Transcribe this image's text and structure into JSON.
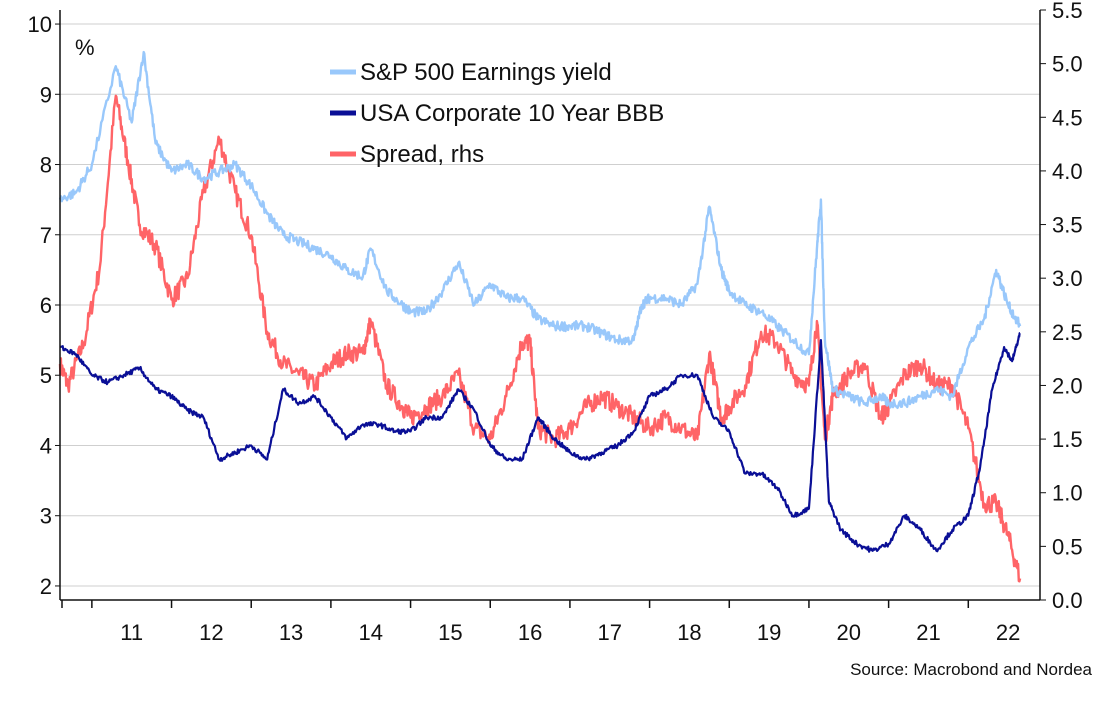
{
  "source": "Source: Macrobond and Nordea",
  "chart_data": {
    "type": "line",
    "left_unit_label": "%",
    "x_tick_labels": [
      "11",
      "12",
      "13",
      "14",
      "15",
      "16",
      "17",
      "18",
      "19",
      "20",
      "21",
      "22"
    ],
    "xlim": [
      2010.6,
      2022.9
    ],
    "ylim_left": [
      1.8,
      10.2
    ],
    "ylim_right": [
      0.0,
      5.5
    ],
    "y_ticks_left": [
      2,
      3,
      4,
      5,
      6,
      7,
      8,
      9,
      10
    ],
    "y_ticks_right": [
      "0.0",
      "0.5",
      "1.0",
      "1.5",
      "2.0",
      "2.5",
      "3.0",
      "3.5",
      "4.0",
      "4.5",
      "5.0",
      "5.5"
    ],
    "grid": true,
    "legend_position": "top-center",
    "series": [
      {
        "name": "S&P 500 Earnings yield",
        "axis": "left",
        "color": "#99c8fb",
        "x": [
          2010.6,
          2010.8,
          2011.0,
          2011.3,
          2011.5,
          2011.65,
          2011.8,
          2012.0,
          2012.2,
          2012.4,
          2012.6,
          2012.8,
          2013.0,
          2013.2,
          2013.4,
          2013.6,
          2013.8,
          2014.0,
          2014.2,
          2014.4,
          2014.5,
          2014.7,
          2014.9,
          2015.0,
          2015.2,
          2015.4,
          2015.6,
          2015.8,
          2016.0,
          2016.2,
          2016.4,
          2016.6,
          2016.8,
          2017.0,
          2017.2,
          2017.4,
          2017.6,
          2017.8,
          2017.9,
          2018.0,
          2018.2,
          2018.4,
          2018.6,
          2018.75,
          2018.9,
          2019.0,
          2019.2,
          2019.4,
          2019.6,
          2019.8,
          2020.0,
          2020.1,
          2020.15,
          2020.2,
          2020.3,
          2020.5,
          2020.7,
          2020.9,
          2021.0,
          2021.2,
          2021.4,
          2021.6,
          2021.8,
          2022.0,
          2022.2,
          2022.35,
          2022.5,
          2022.65
        ],
        "values": [
          7.5,
          7.6,
          8.0,
          9.4,
          8.6,
          9.6,
          8.3,
          7.9,
          8.0,
          7.8,
          7.9,
          8.0,
          7.7,
          7.3,
          7.0,
          6.9,
          6.8,
          6.7,
          6.5,
          6.4,
          6.8,
          6.2,
          6.0,
          5.9,
          5.9,
          6.2,
          6.6,
          6.0,
          6.3,
          6.1,
          6.1,
          5.8,
          5.7,
          5.7,
          5.7,
          5.6,
          5.5,
          5.5,
          6.0,
          6.1,
          6.1,
          6.0,
          6.3,
          7.4,
          6.5,
          6.2,
          6.0,
          5.9,
          5.7,
          5.5,
          5.3,
          6.8,
          7.5,
          5.5,
          4.8,
          4.7,
          4.6,
          4.7,
          4.6,
          4.6,
          4.7,
          4.8,
          4.7,
          5.4,
          5.8,
          6.5,
          6.0,
          5.7
        ]
      },
      {
        "name": "USA Corporate 10 Year BBB",
        "axis": "left",
        "color": "#0a0f96",
        "x": [
          2010.6,
          2010.8,
          2011.0,
          2011.2,
          2011.4,
          2011.6,
          2011.8,
          2012.0,
          2012.2,
          2012.4,
          2012.6,
          2012.8,
          2013.0,
          2013.2,
          2013.4,
          2013.6,
          2013.8,
          2014.0,
          2014.2,
          2014.4,
          2014.6,
          2014.8,
          2015.0,
          2015.2,
          2015.4,
          2015.6,
          2015.8,
          2016.0,
          2016.2,
          2016.4,
          2016.6,
          2016.8,
          2017.0,
          2017.2,
          2017.4,
          2017.6,
          2017.8,
          2018.0,
          2018.2,
          2018.4,
          2018.6,
          2018.8,
          2019.0,
          2019.2,
          2019.4,
          2019.6,
          2019.8,
          2020.0,
          2020.15,
          2020.25,
          2020.4,
          2020.6,
          2020.8,
          2021.0,
          2021.2,
          2021.4,
          2021.6,
          2021.8,
          2022.0,
          2022.15,
          2022.3,
          2022.45,
          2022.55,
          2022.65
        ],
        "values": [
          5.4,
          5.3,
          5.0,
          4.9,
          5.0,
          5.1,
          4.8,
          4.7,
          4.5,
          4.4,
          3.8,
          3.9,
          4.0,
          3.8,
          4.8,
          4.6,
          4.7,
          4.4,
          4.1,
          4.3,
          4.3,
          4.2,
          4.2,
          4.4,
          4.4,
          4.8,
          4.5,
          4.0,
          3.8,
          3.8,
          4.4,
          4.1,
          3.9,
          3.8,
          3.9,
          4.0,
          4.2,
          4.7,
          4.8,
          5.0,
          5.0,
          4.4,
          4.2,
          3.6,
          3.6,
          3.4,
          3.0,
          3.1,
          5.5,
          3.2,
          2.8,
          2.6,
          2.5,
          2.6,
          3.0,
          2.8,
          2.5,
          2.8,
          3.0,
          3.7,
          4.8,
          5.4,
          5.2,
          5.6
        ]
      },
      {
        "name": "Spread, rhs",
        "axis": "right",
        "color": "#ff6467",
        "x": [
          2010.6,
          2010.7,
          2010.9,
          2011.1,
          2011.3,
          2011.45,
          2011.6,
          2011.8,
          2012.0,
          2012.2,
          2012.4,
          2012.6,
          2012.8,
          2013.0,
          2013.2,
          2013.4,
          2013.6,
          2013.8,
          2014.0,
          2014.2,
          2014.4,
          2014.5,
          2014.7,
          2014.9,
          2015.0,
          2015.2,
          2015.4,
          2015.6,
          2015.8,
          2016.0,
          2016.2,
          2016.4,
          2016.5,
          2016.6,
          2016.8,
          2017.0,
          2017.2,
          2017.4,
          2017.6,
          2017.8,
          2018.0,
          2018.2,
          2018.4,
          2018.6,
          2018.75,
          2018.9,
          2019.0,
          2019.2,
          2019.4,
          2019.6,
          2019.8,
          2020.0,
          2020.1,
          2020.2,
          2020.3,
          2020.5,
          2020.7,
          2020.9,
          2021.0,
          2021.2,
          2021.4,
          2021.6,
          2021.8,
          2022.0,
          2022.2,
          2022.35,
          2022.5,
          2022.65
        ],
        "values": [
          2.2,
          2.0,
          2.4,
          3.1,
          4.7,
          4.1,
          3.5,
          3.3,
          2.8,
          3.0,
          3.8,
          4.3,
          3.8,
          3.4,
          2.5,
          2.2,
          2.1,
          2.0,
          2.2,
          2.3,
          2.3,
          2.6,
          2.0,
          1.8,
          1.7,
          1.8,
          1.9,
          2.1,
          1.6,
          1.5,
          1.9,
          2.4,
          2.4,
          1.6,
          1.5,
          1.6,
          1.8,
          1.9,
          1.8,
          1.7,
          1.6,
          1.7,
          1.6,
          1.5,
          2.3,
          1.7,
          1.8,
          2.0,
          2.5,
          2.4,
          2.1,
          2.0,
          2.6,
          1.5,
          1.9,
          2.1,
          2.2,
          1.7,
          1.8,
          2.1,
          2.2,
          2.0,
          2.0,
          1.6,
          0.9,
          0.9,
          0.6,
          0.2
        ]
      }
    ]
  }
}
